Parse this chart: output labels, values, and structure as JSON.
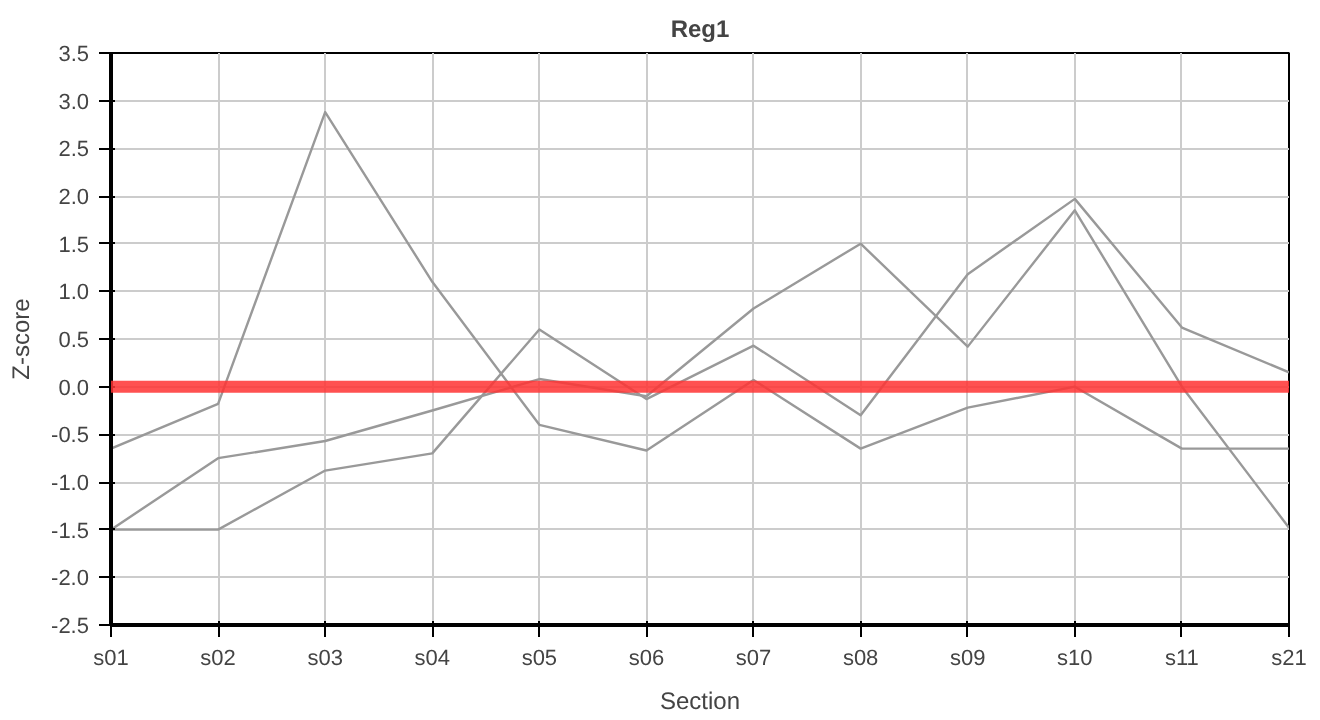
{
  "chart_data": {
    "type": "line",
    "title": "Reg1",
    "xlabel": "Section",
    "ylabel": "Z-score",
    "categories": [
      "s01",
      "s02",
      "s03",
      "s04",
      "s05",
      "s06",
      "s07",
      "s08",
      "s09",
      "s10",
      "s11",
      "s21"
    ],
    "series": [
      {
        "color": "#999999",
        "values": [
          -0.65,
          -0.18,
          2.88,
          1.1,
          -0.4,
          -0.67,
          0.07,
          -0.65,
          -0.22,
          0.0,
          -0.65,
          -0.65
        ]
      },
      {
        "color": "#999999",
        "values": [
          -1.5,
          -1.5,
          -0.88,
          -0.7,
          0.6,
          -0.13,
          0.43,
          -0.3,
          1.18,
          1.97,
          0.62,
          0.15
        ]
      },
      {
        "color": "#999999",
        "values": [
          -1.5,
          -0.75,
          -0.57,
          -0.25,
          0.08,
          -0.1,
          0.82,
          1.5,
          0.42,
          1.85,
          0.0,
          -1.48
        ]
      }
    ],
    "ref_lines": [
      {
        "axis": "y",
        "value": 0,
        "color": "#ff3333"
      }
    ],
    "ylim": [
      -2.5,
      3.5
    ],
    "yticks": [
      {
        "value": -2.5,
        "label": "-2.5"
      },
      {
        "value": -2,
        "label": "-2.0"
      },
      {
        "value": -1.5,
        "label": "-1.5"
      },
      {
        "value": -1,
        "label": "-1.0"
      },
      {
        "value": -0.5,
        "label": "-0.5"
      },
      {
        "value": 0,
        "label": "0.0"
      },
      {
        "value": 0.5,
        "label": "0.5"
      },
      {
        "value": 1,
        "label": "1.0"
      },
      {
        "value": 1.5,
        "label": "1.5"
      },
      {
        "value": 2,
        "label": "2.0"
      },
      {
        "value": 2.5,
        "label": "2.5"
      },
      {
        "value": 3,
        "label": "3.0"
      },
      {
        "value": 3.5,
        "label": "3.5"
      }
    ],
    "grid": true,
    "marker": "none",
    "line_style": "solid"
  }
}
